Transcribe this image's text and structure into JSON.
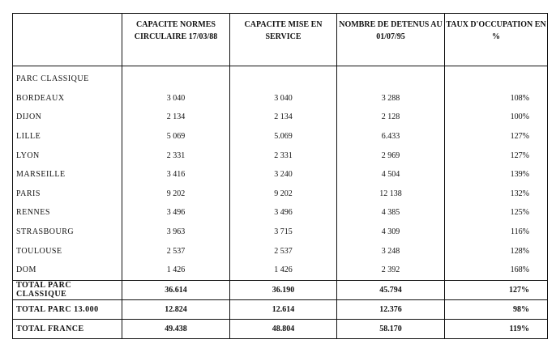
{
  "headers": [
    "",
    "CAPACITE NORMES CIRCULAIRE 17/03/88",
    "CAPACITE MISE EN SERVICE",
    "NOMBRE DE DETENUS AU 01/07/95",
    "TAUX D'OCCUPATION EN %"
  ],
  "section_label": "PARC CLASSIQUE",
  "rows": [
    {
      "name": "BORDEAUX",
      "cap_normes": "3 040",
      "cap_service": "3 040",
      "detenus": "3 288",
      "taux": "108%"
    },
    {
      "name": "DIJON",
      "cap_normes": "2 134",
      "cap_service": "2 134",
      "detenus": "2 128",
      "taux": "100%"
    },
    {
      "name": "LILLE",
      "cap_normes": "5 069",
      "cap_service": "5.069",
      "detenus": "6.433",
      "taux": "127%"
    },
    {
      "name": "LYON",
      "cap_normes": "2 331",
      "cap_service": "2 331",
      "detenus": "2 969",
      "taux": "127%"
    },
    {
      "name": "MARSEILLE",
      "cap_normes": "3 416",
      "cap_service": "3 240",
      "detenus": "4 504",
      "taux": "139%"
    },
    {
      "name": "PARIS",
      "cap_normes": "9 202",
      "cap_service": "9 202",
      "detenus": "12 138",
      "taux": "132%"
    },
    {
      "name": "RENNES",
      "cap_normes": "3 496",
      "cap_service": "3 496",
      "detenus": "4 385",
      "taux": "125%"
    },
    {
      "name": "STRASBOURG",
      "cap_normes": "3 963",
      "cap_service": "3 715",
      "detenus": "4 309",
      "taux": "116%"
    },
    {
      "name": "TOULOUSE",
      "cap_normes": "2 537",
      "cap_service": "2 537",
      "detenus": "3 248",
      "taux": "128%"
    },
    {
      "name": "DOM",
      "cap_normes": "1 426",
      "cap_service": "1 426",
      "detenus": "2 392",
      "taux": "168%"
    }
  ],
  "totals": [
    {
      "name": "TOTAL PARC CLASSIQUE",
      "cap_normes": "36.614",
      "cap_service": "36.190",
      "detenus": "45.794",
      "taux": "127%"
    },
    {
      "name": "TOTAL PARC 13.000",
      "cap_normes": "12.824",
      "cap_service": "12.614",
      "detenus": "12.376",
      "taux": "98%"
    },
    {
      "name": "TOTAL FRANCE",
      "cap_normes": "49.438",
      "cap_service": "48.804",
      "detenus": "58.170",
      "taux": "119%"
    }
  ]
}
